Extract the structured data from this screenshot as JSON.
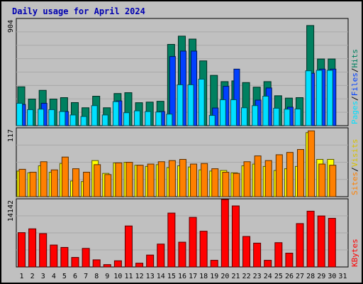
{
  "chart_data": [
    {
      "type": "bar",
      "title": "Daily usage for April 2024",
      "panel": "hits-files-pages",
      "categories": [
        "1",
        "2",
        "3",
        "4",
        "5",
        "6",
        "7",
        "8",
        "9",
        "10",
        "11",
        "12",
        "13",
        "14",
        "15",
        "16",
        "17",
        "18",
        "19",
        "20",
        "21",
        "22",
        "23",
        "24",
        "25",
        "26",
        "27",
        "28",
        "29",
        "30",
        "31"
      ],
      "weekend_days": [
        "6",
        "7",
        "13",
        "14",
        "20",
        "21",
        "27",
        "28"
      ],
      "ymax_label": "904",
      "ylim": [
        0,
        904
      ],
      "series": [
        {
          "name": "Hits",
          "color": "#008060",
          "values": [
            330,
            226,
            300,
            226,
            238,
            196,
            152,
            250,
            152,
            273,
            280,
            195,
            200,
            207,
            690,
            760,
            735,
            550,
            427,
            374,
            380,
            366,
            327,
            374,
            254,
            234,
            238,
            850,
            566,
            566,
            0
          ]
        },
        {
          "name": "Files",
          "color": "#0040ff",
          "values": [
            180,
            0,
            190,
            0,
            120,
            0,
            0,
            0,
            0,
            210,
            0,
            0,
            0,
            120,
            587,
            633,
            633,
            0,
            150,
            334,
            480,
            0,
            217,
            320,
            0,
            157,
            0,
            445,
            480,
            480,
            0
          ]
        },
        {
          "name": "Pages",
          "color": "#00e0ff",
          "values": [
            190,
            136,
            140,
            136,
            120,
            91,
            78,
            170,
            91,
            204,
            110,
            126,
            120,
            116,
            98,
            347,
            347,
            395,
            87,
            220,
            220,
            152,
            170,
            250,
            148,
            140,
            142,
            466,
            470,
            470,
            0
          ]
        }
      ]
    },
    {
      "type": "bar",
      "panel": "visits-sites",
      "categories": [
        "1",
        "2",
        "3",
        "4",
        "5",
        "6",
        "7",
        "8",
        "9",
        "10",
        "11",
        "12",
        "13",
        "14",
        "15",
        "16",
        "17",
        "18",
        "19",
        "20",
        "21",
        "22",
        "23",
        "24",
        "25",
        "26",
        "27",
        "28",
        "29",
        "30",
        "31"
      ],
      "ymax_label": "117",
      "ylim": [
        0,
        117
      ],
      "series": [
        {
          "name": "Visits",
          "color": "#ffff00",
          "values": [
            44,
            41,
            53,
            42,
            57,
            27,
            26,
            62,
            40,
            58,
            59,
            54,
            52,
            55,
            50,
            53,
            51,
            46,
            44,
            45,
            41,
            53,
            56,
            52,
            45,
            48,
            52,
            110,
            64,
            64,
            0
          ]
        },
        {
          "name": "Sites",
          "color": "#ff8000",
          "values": [
            47,
            42,
            60,
            46,
            68,
            48,
            42,
            55,
            38,
            58,
            59,
            54,
            56,
            60,
            62,
            64,
            56,
            57,
            48,
            42,
            40,
            60,
            70,
            62,
            72,
            76,
            81,
            113,
            56,
            54,
            0
          ]
        }
      ]
    },
    {
      "type": "bar",
      "panel": "kbytes",
      "categories": [
        "1",
        "2",
        "3",
        "4",
        "5",
        "6",
        "7",
        "8",
        "9",
        "10",
        "11",
        "12",
        "13",
        "14",
        "15",
        "16",
        "17",
        "18",
        "19",
        "20",
        "21",
        "22",
        "23",
        "24",
        "25",
        "26",
        "27",
        "28",
        "29",
        "30",
        "31"
      ],
      "ymax_label": "14142",
      "ylim": [
        0,
        14142
      ],
      "series": [
        {
          "name": "KBytes",
          "color": "#ff0000",
          "values": [
            7200,
            8000,
            7000,
            4600,
            4100,
            2000,
            3900,
            1500,
            500,
            1300,
            8600,
            800,
            2500,
            4800,
            11300,
            5200,
            10400,
            7500,
            1400,
            14142,
            12800,
            6400,
            5000,
            1400,
            5100,
            2900,
            9100,
            11700,
            10700,
            10200,
            0
          ]
        }
      ]
    }
  ]
}
